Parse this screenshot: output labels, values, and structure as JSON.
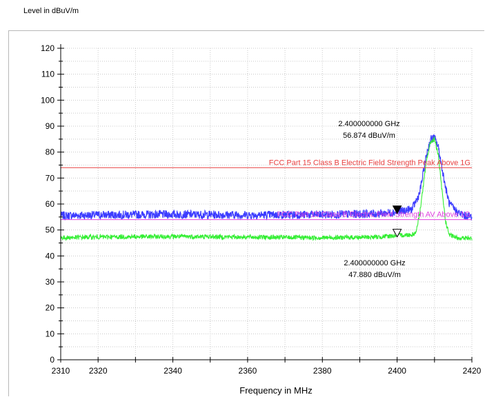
{
  "chart_data": {
    "type": "line",
    "ylabel": "Level in dBuV/m",
    "xlabel": "Frequency in MHz",
    "xlim": [
      2310,
      2420
    ],
    "ylim": [
      0,
      120
    ],
    "x_ticks": [
      2310,
      2320,
      2340,
      2360,
      2380,
      2400,
      2420
    ],
    "y_ticks": [
      0,
      10,
      20,
      30,
      40,
      50,
      60,
      70,
      80,
      90,
      100,
      110,
      120
    ],
    "grid": true,
    "series": [
      {
        "name": "",
        "color": "#3c3cff",
        "x": [
          2310,
          2320,
          2340,
          2360,
          2380,
          2395,
          2400,
          2402,
          2404,
          2406,
          2407,
          2408,
          2409,
          2410,
          2411,
          2412,
          2413,
          2414,
          2416,
          2418,
          2420
        ],
        "values": [
          55.5,
          55.8,
          56.0,
          55.8,
          55.9,
          56.3,
          56.9,
          57.5,
          58.0,
          64.0,
          72.0,
          80.0,
          85.0,
          85.5,
          82.0,
          74.0,
          66.0,
          60.0,
          57.0,
          55.5,
          55.2
        ]
      },
      {
        "name": "",
        "color": "#33ee33",
        "x": [
          2310,
          2320,
          2340,
          2360,
          2380,
          2395,
          2400,
          2404,
          2405,
          2406,
          2407,
          2408,
          2409,
          2410,
          2411,
          2412,
          2413,
          2414,
          2416,
          2418,
          2420
        ],
        "values": [
          47.0,
          47.3,
          47.5,
          47.3,
          47.0,
          47.3,
          47.9,
          48.2,
          49.0,
          56.0,
          67.0,
          78.0,
          84.0,
          85.0,
          79.0,
          65.0,
          53.0,
          48.0,
          47.0,
          46.8,
          46.7
        ]
      }
    ],
    "limit_lines": [
      {
        "label": "FCC Part 15 Class B Electric Field Strength Peak Above 1G",
        "value": 74,
        "color": "#e84040"
      },
      {
        "label": "FCC Part 15 Class B Electric Field Strength AV Above 1G",
        "value": 54,
        "color": "#e040e0"
      }
    ],
    "markers": [
      {
        "freq_text": "2.400000000 GHz",
        "level_text": "56.874 dBuV/m",
        "x": 2400,
        "y": 56.874,
        "filled": true
      },
      {
        "freq_text": "2.400000000 GHz",
        "level_text": "47.880 dBuV/m",
        "x": 2400,
        "y": 47.88,
        "filled": false
      }
    ]
  }
}
